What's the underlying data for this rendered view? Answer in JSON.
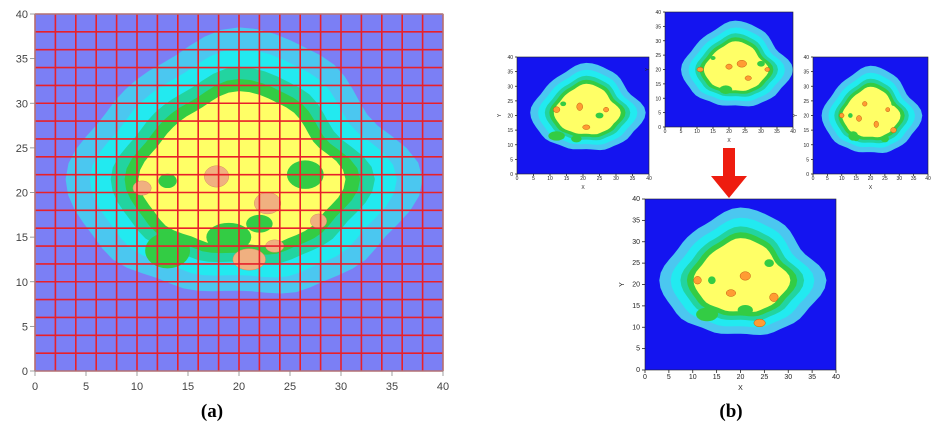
{
  "panels": {
    "a_label": "(a)",
    "b_label": "(b)"
  },
  "colors": {
    "bg_a": "#7b7ff5",
    "bg_b": "#1414f0",
    "grid": "#e8202a",
    "arrow": "#ee1c0f",
    "levels": [
      "#4bc7f0",
      "#22eaf0",
      "#22d4a0",
      "#33cc44",
      "#ffff66",
      "#ff9c33",
      "#e26a10"
    ]
  },
  "chart_data": [
    {
      "id": "a",
      "type": "contour",
      "xlim": [
        0,
        40
      ],
      "ylim": [
        0,
        40
      ],
      "x_ticks": [
        0,
        5,
        10,
        15,
        20,
        25,
        30,
        35,
        40
      ],
      "y_ticks": [
        0,
        5,
        10,
        15,
        20,
        25,
        30,
        35,
        40
      ],
      "grid": "on (2 x 2 cells, red)",
      "overlay": true
    },
    {
      "id": "b1",
      "type": "contour",
      "xlim": [
        0,
        40
      ],
      "ylim": [
        0,
        40
      ],
      "x_ticks": [
        0,
        5,
        10,
        15,
        20,
        25,
        30,
        35,
        40
      ],
      "y_ticks": [
        0,
        5,
        10,
        15,
        20,
        25,
        30,
        35,
        40
      ],
      "xlabel": "X",
      "ylabel": "Y"
    },
    {
      "id": "b2",
      "type": "contour",
      "xlim": [
        0,
        40
      ],
      "ylim": [
        0,
        40
      ],
      "x_ticks": [
        0,
        5,
        10,
        15,
        20,
        25,
        30,
        35,
        40
      ],
      "y_ticks": [
        0,
        5,
        10,
        15,
        20,
        25,
        30,
        35,
        40
      ],
      "xlabel": "X",
      "ylabel": "Y"
    },
    {
      "id": "b3",
      "type": "contour",
      "xlim": [
        0,
        40
      ],
      "ylim": [
        0,
        40
      ],
      "x_ticks": [
        0,
        5,
        10,
        15,
        20,
        25,
        30,
        35,
        40
      ],
      "y_ticks": [
        0,
        5,
        10,
        15,
        20,
        25,
        30,
        35,
        40
      ],
      "xlabel": "X",
      "ylabel": "Y"
    },
    {
      "id": "b4",
      "type": "contour",
      "xlim": [
        0,
        40
      ],
      "ylim": [
        0,
        40
      ],
      "x_ticks": [
        0,
        5,
        10,
        15,
        20,
        25,
        30,
        35,
        40
      ],
      "y_ticks": [
        0,
        5,
        10,
        15,
        20,
        25,
        30,
        35,
        40
      ],
      "xlabel": "X",
      "ylabel": "Y"
    }
  ]
}
